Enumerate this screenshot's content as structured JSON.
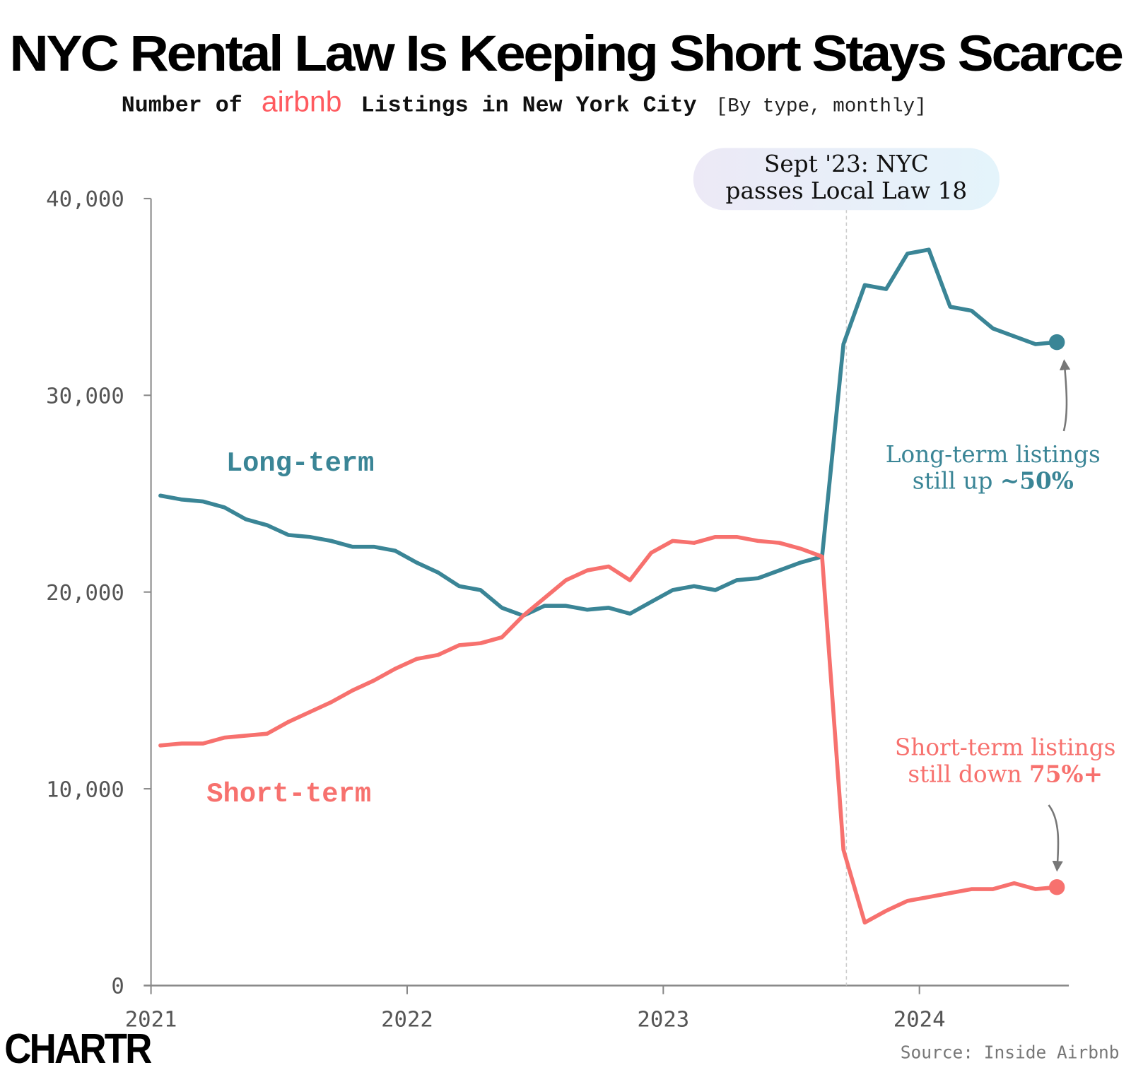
{
  "title": "NYC Rental Law Is Keeping Short Stays Scarce",
  "subtitle": {
    "prefix": "Number of",
    "brand": "airbnb",
    "suffix": "Listings in New York City",
    "note": "[By type, monthly]"
  },
  "source": "Source: Inside Airbnb",
  "logo": "CHARTR",
  "colors": {
    "long_term": "#3a8596",
    "short_term": "#f7716e",
    "brand": "#ff5a5f",
    "axis": "#777777"
  },
  "chart_data": {
    "type": "line",
    "title": "NYC Rental Law Is Keeping Short Stays Scarce",
    "x_start": "2021-01",
    "x_end": "2024-07",
    "x_ticks": [
      "2021",
      "2022",
      "2023",
      "2024"
    ],
    "y_ticks": [
      "0",
      "10,000",
      "20,000",
      "30,000",
      "40,000"
    ],
    "y_tick_values": [
      0,
      10000,
      20000,
      30000,
      40000
    ],
    "ylim": [
      0,
      40000
    ],
    "grid": false,
    "series": [
      {
        "name": "Long-term",
        "color": "#3a8596",
        "values": [
          24900,
          24700,
          24600,
          24300,
          23700,
          23400,
          22900,
          22800,
          22600,
          22300,
          22300,
          22100,
          21500,
          21000,
          20300,
          20100,
          19200,
          18800,
          19300,
          19300,
          19100,
          19200,
          18900,
          19500,
          20100,
          20300,
          20100,
          20600,
          20700,
          21100,
          21500,
          21800,
          32600,
          35600,
          35400,
          37200,
          37400,
          34500,
          34300,
          33400,
          33000,
          32600,
          32700
        ]
      },
      {
        "name": "Short-term",
        "color": "#f7716e",
        "values": [
          12200,
          12300,
          12300,
          12600,
          12700,
          12800,
          13400,
          13900,
          14400,
          15000,
          15500,
          16100,
          16600,
          16800,
          17300,
          17400,
          17700,
          18800,
          19700,
          20600,
          21100,
          21300,
          20600,
          22000,
          22600,
          22500,
          22800,
          22800,
          22600,
          22500,
          22200,
          21800,
          6900,
          3200,
          3800,
          4300,
          4500,
          4700,
          4900,
          4900,
          5200,
          4900,
          5000
        ]
      }
    ],
    "annotations": {
      "event_line1": "Sept '23: NYC",
      "event_line2": "passes Local Law 18",
      "event_date": "2023-09",
      "long_note_line1": "Long-term listings",
      "long_note_line2_a": "still up ",
      "long_note_line2_b": "~50%",
      "short_note_line1": "Short-term listings",
      "short_note_line2_a": "still down ",
      "short_note_line2_b": "75%+"
    }
  }
}
